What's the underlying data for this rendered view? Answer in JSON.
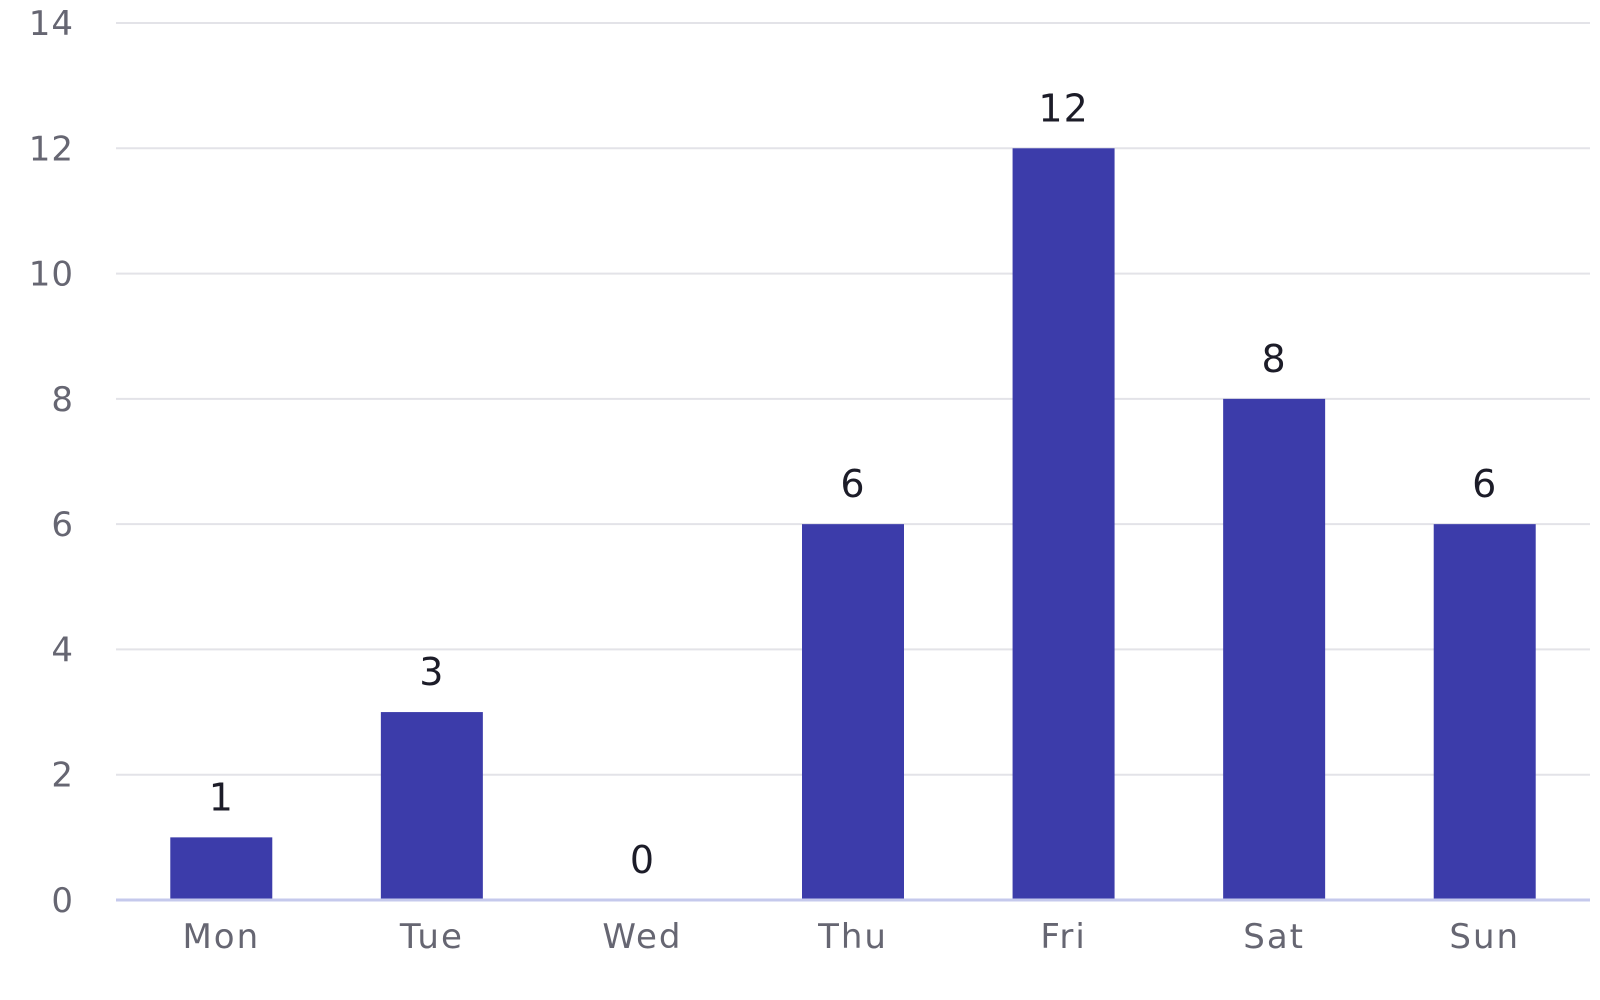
{
  "chart_data": {
    "type": "bar",
    "categories": [
      "Mon",
      "Tue",
      "Wed",
      "Thu",
      "Fri",
      "Sat",
      "Sun"
    ],
    "values": [
      1,
      3,
      0,
      6,
      12,
      8,
      6
    ],
    "ylim": [
      0,
      14
    ],
    "y_ticks": [
      0,
      2,
      4,
      6,
      8,
      10,
      12,
      14
    ],
    "grid": true,
    "legend": "none",
    "data_labels": true,
    "colors": {
      "bar": "#3c3caa",
      "grid": "#e3e3e8",
      "baseline": "#c5c9ec",
      "tick_text": "#666672",
      "label_text": "#1c1c28",
      "background": "#ffffff"
    }
  }
}
